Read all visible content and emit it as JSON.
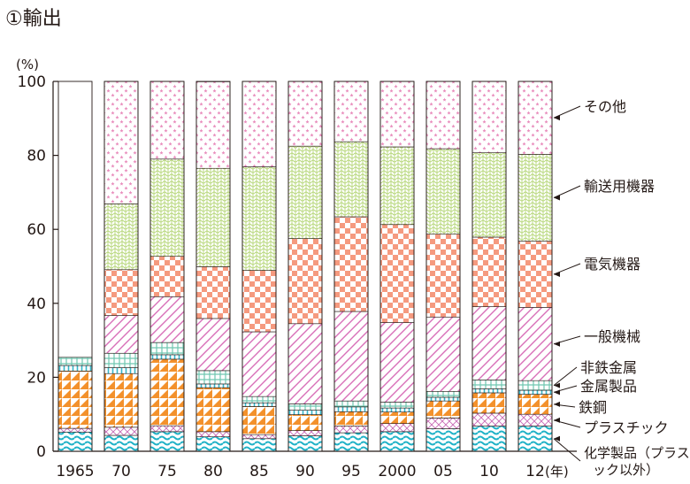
{
  "chart_data": {
    "type": "bar",
    "stacked": true,
    "title": "①輸出",
    "ylabel": "(%)",
    "xlabel_suffix": "(年)",
    "ylim": [
      0,
      100
    ],
    "yticks": [
      0,
      20,
      40,
      60,
      80,
      100
    ],
    "grid": false,
    "legend_placement": "right (labels beside the final bar)",
    "categories": [
      "1965",
      "70",
      "75",
      "80",
      "85",
      "90",
      "95",
      "2000",
      "05",
      "10",
      "12"
    ],
    "series": [
      {
        "name": "化学製品（プラスチック以外）",
        "pattern": "wave",
        "color": "#20b2c7",
        "values": [
          5.2,
          4.3,
          5.3,
          3.9,
          3.4,
          4.2,
          5.0,
          5.3,
          6.1,
          6.8,
          6.8
        ]
      },
      {
        "name": "プラスチック",
        "pattern": "cross",
        "color": "#c86ab6",
        "values": [
          1.0,
          2.2,
          1.6,
          1.4,
          1.1,
          1.4,
          1.8,
          2.2,
          2.9,
          3.5,
          3.2
        ]
      },
      {
        "name": "鉄鋼",
        "pattern": "triangle",
        "color": "#f3912c",
        "values": [
          15.5,
          14.5,
          18.0,
          11.9,
          7.6,
          4.3,
          3.9,
          3.1,
          4.6,
          5.5,
          5.4
        ]
      },
      {
        "name": "金属製品",
        "pattern": "vlines",
        "color": "#38b6c9",
        "values": [
          1.5,
          1.6,
          1.2,
          1.0,
          1.0,
          1.2,
          1.3,
          1.1,
          1.0,
          1.1,
          1.1
        ]
      },
      {
        "name": "非鉄金属",
        "pattern": "grid",
        "color": "#6fc7b0",
        "values": [
          2.2,
          3.9,
          3.3,
          3.6,
          1.7,
          1.7,
          1.6,
          1.6,
          1.6,
          2.4,
          2.6
        ]
      },
      {
        "name": "一般機械",
        "pattern": "diag",
        "color": "#d86fb8",
        "values": [
          0,
          10.2,
          12.4,
          14.1,
          17.5,
          21.7,
          24.2,
          21.5,
          20.1,
          19.8,
          19.8
        ]
      },
      {
        "name": "電気機器",
        "pattern": "checker",
        "color": "#f59a7f",
        "values": [
          0,
          12.4,
          10.9,
          14.0,
          16.6,
          23.0,
          25.6,
          26.5,
          22.4,
          18.8,
          17.9
        ]
      },
      {
        "name": "輸送用機器",
        "pattern": "weave",
        "color": "#b7d77a",
        "values": [
          0,
          17.8,
          26.3,
          26.6,
          28.0,
          25.0,
          20.3,
          21.0,
          23.1,
          22.8,
          23.5
        ]
      },
      {
        "name": "その他",
        "pattern": "stars",
        "color": "#e98dbd",
        "values": [
          0,
          33.1,
          21.0,
          23.4,
          23.1,
          17.5,
          16.3,
          17.7,
          18.2,
          19.3,
          19.7
        ]
      }
    ],
    "blank_remainder_note": ""
  }
}
